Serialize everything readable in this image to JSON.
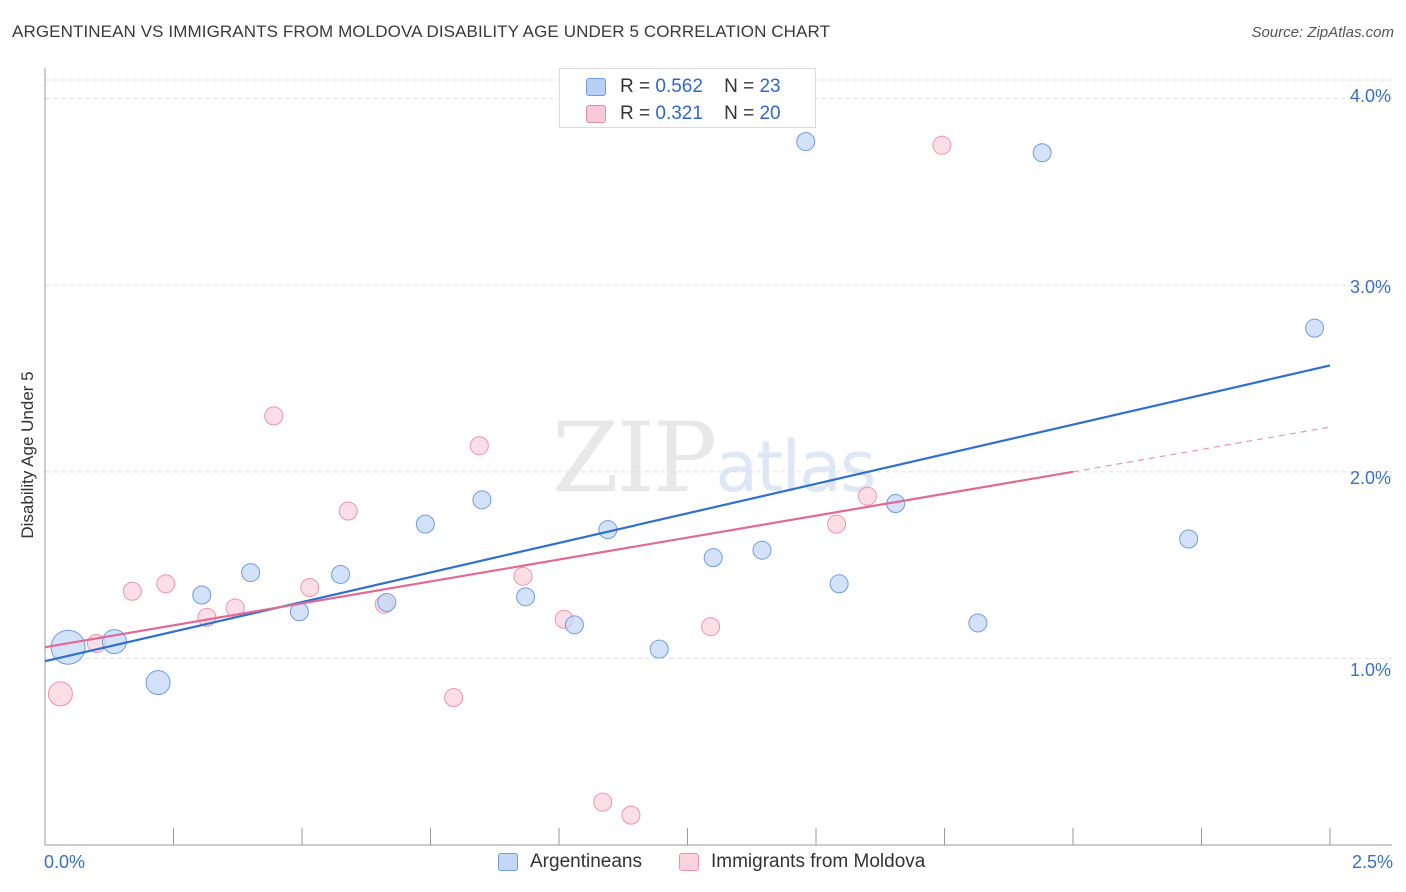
{
  "title": "ARGENTINEAN VS IMMIGRANTS FROM MOLDOVA DISABILITY AGE UNDER 5 CORRELATION CHART",
  "source": "Source: ZipAtlas.com",
  "watermark": {
    "zip": "ZIP",
    "atlas": "atlas"
  },
  "legend_top": {
    "rows": [
      {
        "r_label": "R =",
        "r_value": "0.562",
        "n_label": "N =",
        "n_value": "23",
        "color": "#b7d0f3",
        "border": "#6f9be0"
      },
      {
        "r_label": "R =",
        "r_value": "0.321",
        "n_label": "N =",
        "n_value": "20",
        "color": "#f9c9d7",
        "border": "#e88aa8"
      }
    ]
  },
  "colors": {
    "blue_fill": "#c4d8f5",
    "blue_stroke": "#6f9be0",
    "blue_line": "#2f6fd0",
    "pink_fill": "#fbd3de",
    "pink_stroke": "#ee93ae",
    "pink_line": "#e06a94",
    "grid": "#dddddd",
    "axis": "#999999",
    "tick_text": "#3a6fc4"
  },
  "chart_data": {
    "type": "scatter",
    "title": "ARGENTINEAN VS IMMIGRANTS FROM MOLDOVA DISABILITY AGE UNDER 5 CORRELATION CHART",
    "xlabel": "",
    "ylabel": "Disability Age Under 5",
    "xlim": [
      0,
      2.5
    ],
    "ylim": [
      0,
      4.1
    ],
    "x_tick_labels": [
      "0.0%",
      "2.5%"
    ],
    "y_ticks": [
      1.0,
      2.0,
      3.0,
      4.0
    ],
    "y_tick_labels": [
      "1.0%",
      "2.0%",
      "3.0%",
      "4.0%"
    ],
    "grid": true,
    "series": [
      {
        "name": "Argentineans",
        "R": 0.562,
        "N": 23,
        "points": [
          {
            "x": 0.045,
            "y": 1.06,
            "size": 3
          },
          {
            "x": 0.135,
            "y": 1.09,
            "size": 2
          },
          {
            "x": 0.22,
            "y": 0.87,
            "size": 2
          },
          {
            "x": 0.305,
            "y": 1.34,
            "size": 1
          },
          {
            "x": 0.4,
            "y": 1.46,
            "size": 1
          },
          {
            "x": 0.495,
            "y": 1.25,
            "size": 1
          },
          {
            "x": 0.575,
            "y": 1.45,
            "size": 1
          },
          {
            "x": 0.665,
            "y": 1.3,
            "size": 1
          },
          {
            "x": 0.74,
            "y": 1.72,
            "size": 1
          },
          {
            "x": 0.85,
            "y": 1.85,
            "size": 1
          },
          {
            "x": 0.935,
            "y": 1.33,
            "size": 1
          },
          {
            "x": 1.03,
            "y": 1.18,
            "size": 1
          },
          {
            "x": 1.095,
            "y": 1.69,
            "size": 1
          },
          {
            "x": 1.195,
            "y": 1.05,
            "size": 1
          },
          {
            "x": 1.3,
            "y": 1.54,
            "size": 1
          },
          {
            "x": 1.395,
            "y": 1.58,
            "size": 1
          },
          {
            "x": 1.48,
            "y": 3.77,
            "size": 1
          },
          {
            "x": 1.545,
            "y": 1.4,
            "size": 1
          },
          {
            "x": 1.655,
            "y": 1.83,
            "size": 1
          },
          {
            "x": 1.815,
            "y": 1.19,
            "size": 1
          },
          {
            "x": 1.94,
            "y": 3.71,
            "size": 1
          },
          {
            "x": 2.225,
            "y": 1.64,
            "size": 1
          },
          {
            "x": 2.47,
            "y": 2.77,
            "size": 1
          }
        ],
        "trend": {
          "x0": 0.0,
          "y0": 0.985,
          "x1": 2.5,
          "y1": 2.57
        }
      },
      {
        "name": "Immigrants from Moldova",
        "R": 0.321,
        "N": 20,
        "points": [
          {
            "x": 0.03,
            "y": 0.81,
            "size": 2
          },
          {
            "x": 0.1,
            "y": 1.08,
            "size": 1
          },
          {
            "x": 0.17,
            "y": 1.36,
            "size": 1
          },
          {
            "x": 0.235,
            "y": 1.4,
            "size": 1
          },
          {
            "x": 0.315,
            "y": 1.22,
            "size": 1
          },
          {
            "x": 0.37,
            "y": 1.27,
            "size": 1
          },
          {
            "x": 0.445,
            "y": 2.3,
            "size": 1
          },
          {
            "x": 0.515,
            "y": 1.38,
            "size": 1
          },
          {
            "x": 0.59,
            "y": 1.79,
            "size": 1
          },
          {
            "x": 0.66,
            "y": 1.29,
            "size": 1
          },
          {
            "x": 0.795,
            "y": 0.79,
            "size": 1
          },
          {
            "x": 0.845,
            "y": 2.14,
            "size": 1
          },
          {
            "x": 0.93,
            "y": 1.44,
            "size": 1
          },
          {
            "x": 1.01,
            "y": 1.21,
            "size": 1
          },
          {
            "x": 1.085,
            "y": 0.23,
            "size": 1
          },
          {
            "x": 1.14,
            "y": 0.16,
            "size": 1
          },
          {
            "x": 1.295,
            "y": 1.17,
            "size": 1
          },
          {
            "x": 1.54,
            "y": 1.72,
            "size": 1
          },
          {
            "x": 1.6,
            "y": 1.87,
            "size": 1
          },
          {
            "x": 1.745,
            "y": 3.75,
            "size": 1
          }
        ],
        "trend": {
          "x0": 0.0,
          "y0": 1.06,
          "x1": 2.0,
          "y1": 2.0,
          "dash_to_x": 2.5,
          "dash_to_y": 2.24
        }
      }
    ]
  },
  "legend_bottom": {
    "items": [
      "Argentineans",
      "Immigrants from Moldova"
    ]
  }
}
